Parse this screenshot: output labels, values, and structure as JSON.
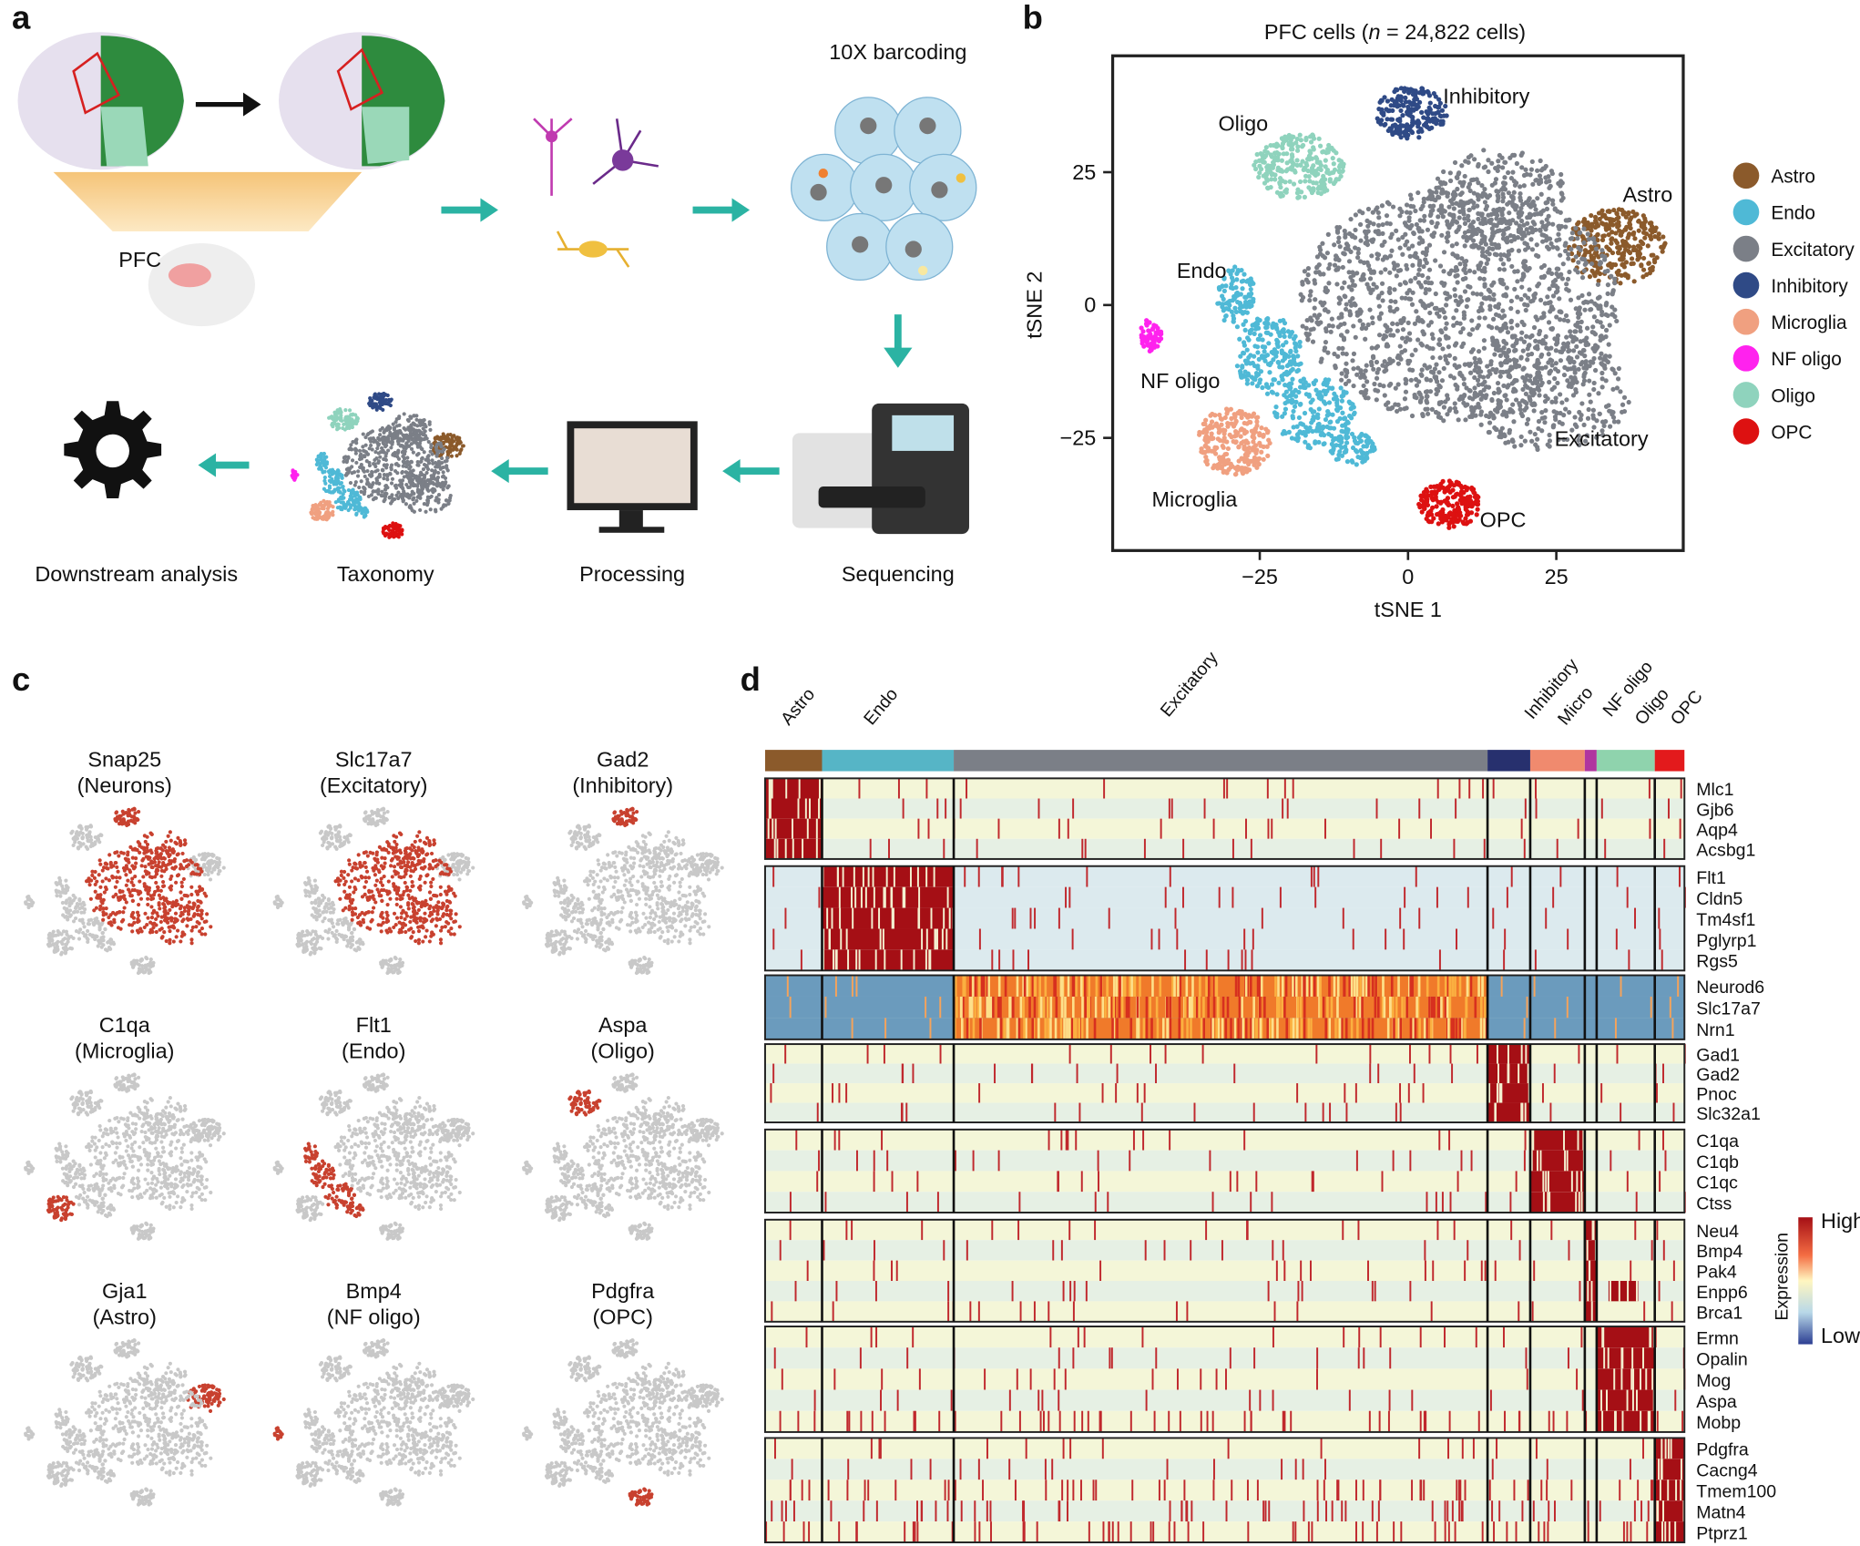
{
  "panel_a": {
    "letter": "a",
    "region": "PFC",
    "steps": [
      "10X barcoding",
      "Sequencing",
      "Processing",
      "Taxonomy",
      "Downstream analysis"
    ]
  },
  "panel_b": {
    "letter": "b",
    "title": [
      "PFC cells (",
      "n",
      " = 24,822 cells)"
    ],
    "xlabel": "tSNE 1",
    "ylabel": "tSNE 2",
    "xlim": [
      -49.8,
      46.4
    ],
    "ylim": [
      -46.2,
      46.9
    ],
    "xticks": [
      {
        "value": -25,
        "label": "−25"
      },
      0,
      25
    ],
    "yticks": [
      {
        "value": -25,
        "label": "−25"
      },
      0,
      25
    ],
    "cluster_labels": [
      "Astro",
      "Endo",
      "Excitatory",
      "Inhibitory",
      "Microglia",
      "NF oligo",
      "Oligo",
      "OPC"
    ],
    "legend": [
      {
        "name": "Astro",
        "color": "#8b5a2b"
      },
      {
        "name": "Endo",
        "color": "#4fb9d6"
      },
      {
        "name": "Excitatory",
        "color": "#7b7f87"
      },
      {
        "name": "Inhibitory",
        "color": "#2f4a86"
      },
      {
        "name": "Microglia",
        "color": "#f0a080"
      },
      {
        "name": "NF oligo",
        "color": "#ff22ee"
      },
      {
        "name": "Oligo",
        "color": "#8fd3bd"
      },
      {
        "name": "OPC",
        "color": "#dd1111"
      }
    ]
  },
  "panel_c": {
    "letter": "c",
    "maps": [
      {
        "gene": "Snap25",
        "type": "(Neurons)"
      },
      {
        "gene": "Slc17a7",
        "type": "(Excitatory)"
      },
      {
        "gene": "Gad2",
        "type": "(Inhibitory)"
      },
      {
        "gene": "C1qa",
        "type": "(Microglia)"
      },
      {
        "gene": "Flt1",
        "type": "(Endo)"
      },
      {
        "gene": "Aspa",
        "type": "(Oligo)"
      },
      {
        "gene": "Gja1",
        "type": "(Astro)"
      },
      {
        "gene": "Bmp4",
        "type": "(NF oligo)"
      },
      {
        "gene": "Pdgfra",
        "type": "(OPC)"
      }
    ]
  },
  "panel_d": {
    "letter": "d",
    "groups": [
      "Astro",
      "Endo",
      "Excitatory",
      "Inhibitory",
      "Micro",
      "NF oligo",
      "Oligo",
      "OPC"
    ],
    "blocks": [
      [
        "Mlc1",
        "Gjb6",
        "Aqp4",
        "Acsbg1"
      ],
      [
        "Flt1",
        "Cldn5",
        "Tm4sf1",
        "Pglyrp1",
        "Rgs5"
      ],
      [
        "Neurod6",
        "Slc17a7",
        "Nrn1"
      ],
      [
        "Gad1",
        "Gad2",
        "Pnoc",
        "Slc32a1"
      ],
      [
        "C1qa",
        "C1qb",
        "C1qc",
        "Ctss"
      ],
      [
        "Neu4",
        "Bmp4",
        "Pak4",
        "Enpp6",
        "Brca1"
      ],
      [
        "Ermn",
        "Opalin",
        "Mog",
        "Aspa",
        "Mobp"
      ],
      [
        "Pdgfra",
        "Cacng4",
        "Tmem100",
        "Matn4",
        "Ptprz1"
      ]
    ],
    "colorbar": {
      "label": "Expression",
      "high": "High",
      "low": "Low"
    }
  }
}
